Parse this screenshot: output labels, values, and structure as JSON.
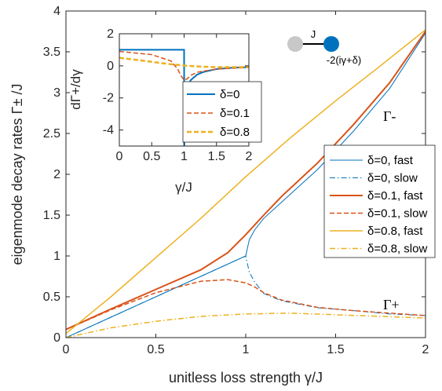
{
  "chart_data": [
    {
      "type": "line",
      "xlabel": "unitless loss strength γ/J",
      "ylabel": "eigenmode decay rates Γ± /J",
      "xlim": [
        0,
        2
      ],
      "ylim": [
        0,
        4
      ],
      "xticks": [
        "0",
        "0.5",
        "1",
        "1.5",
        "2"
      ],
      "yticks": [
        "0",
        "0.5",
        "1",
        "1.5",
        "2",
        "2.5",
        "3",
        "3.5",
        "4"
      ],
      "legend_position": "right",
      "annotations": [
        "Γ-",
        "Γ+"
      ],
      "diagram": {
        "coupling_label": "J",
        "loss_label": "-2(iγ+δ)"
      },
      "series": [
        {
          "name": "δ=0, fast",
          "color": "#0072BD",
          "dash": "solid",
          "width": 1,
          "x": [
            0,
            0.25,
            0.5,
            0.75,
            1,
            1.02,
            1.05,
            1.1,
            1.2,
            1.4,
            1.6,
            1.8,
            2
          ],
          "y": [
            0,
            0.25,
            0.5,
            0.75,
            1,
            1.2,
            1.32,
            1.46,
            1.66,
            2.06,
            2.53,
            3.05,
            3.73
          ]
        },
        {
          "name": "δ=0, slow",
          "color": "#0072BD",
          "dash": "dashdot",
          "width": 1,
          "x": [
            0,
            0.25,
            0.5,
            0.75,
            1,
            1.02,
            1.05,
            1.1,
            1.2,
            1.4,
            1.6,
            1.8,
            2
          ],
          "y": [
            0,
            0.25,
            0.5,
            0.75,
            1,
            0.8,
            0.68,
            0.54,
            0.45,
            0.365,
            0.33,
            0.29,
            0.27
          ]
        },
        {
          "name": "δ=0.1, fast",
          "color": "#D95319",
          "dash": "solid",
          "width": 2,
          "x": [
            0,
            0.25,
            0.5,
            0.75,
            0.9,
            1,
            1.05,
            1.1,
            1.2,
            1.4,
            1.6,
            1.8,
            2
          ],
          "y": [
            0.1,
            0.35,
            0.59,
            0.83,
            1.04,
            1.26,
            1.38,
            1.5,
            1.73,
            2.14,
            2.61,
            3.12,
            3.75
          ]
        },
        {
          "name": "δ=0.1, slow",
          "color": "#D95319",
          "dash": "dashed",
          "width": 1.5,
          "x": [
            0,
            0.25,
            0.5,
            0.75,
            0.9,
            1,
            1.05,
            1.1,
            1.2,
            1.4,
            1.6,
            1.8,
            2
          ],
          "y": [
            0.1,
            0.34,
            0.55,
            0.69,
            0.71,
            0.67,
            0.62,
            0.55,
            0.46,
            0.37,
            0.33,
            0.3,
            0.27
          ]
        },
        {
          "name": "δ=0.8, fast",
          "color": "#EDB120",
          "dash": "solid",
          "width": 1.5,
          "x": [
            0,
            0.25,
            0.5,
            0.75,
            1,
            1.25,
            1.5,
            1.75,
            2
          ],
          "y": [
            0.05,
            0.5,
            0.98,
            1.46,
            1.97,
            2.45,
            2.9,
            3.33,
            3.77
          ]
        },
        {
          "name": "δ=0.8, slow",
          "color": "#EDB120",
          "dash": "dashdot",
          "width": 1.5,
          "x": [
            0,
            0.25,
            0.5,
            0.75,
            1,
            1.25,
            1.5,
            1.75,
            2
          ],
          "y": [
            0,
            0.12,
            0.2,
            0.26,
            0.29,
            0.3,
            0.28,
            0.26,
            0.24
          ]
        }
      ]
    },
    {
      "type": "line",
      "xlabel": "γ/J",
      "ylabel": "dΓ+/dγ",
      "xlim": [
        0,
        2
      ],
      "ylim": [
        -5,
        2
      ],
      "xticks": [
        "0",
        "0.5",
        "1",
        "1.5",
        "2"
      ],
      "yticks": [
        "2",
        "0",
        "-2",
        "-4"
      ],
      "legend_position": "bottom-left",
      "series": [
        {
          "name": "δ=0",
          "color": "#0072BD",
          "dash": "solid",
          "width": 2,
          "x": [
            0,
            0.5,
            0.995,
            0.998,
            1.0,
            1.002,
            1.01,
            1.05,
            1.1,
            1.2,
            1.3,
            1.5,
            1.75,
            2
          ],
          "y": [
            1,
            1,
            1,
            1,
            1,
            -5,
            -3,
            -1.35,
            -0.9,
            -0.55,
            -0.38,
            -0.2,
            -0.12,
            -0.08
          ]
        },
        {
          "name": "δ=0.1",
          "color": "#D95319",
          "dash": "dashed",
          "width": 1.5,
          "x": [
            0,
            0.5,
            0.8,
            0.9,
            0.95,
            1,
            1.05,
            1.1,
            1.2,
            1.5,
            2
          ],
          "y": [
            0.9,
            0.7,
            0.3,
            -0.2,
            -0.6,
            -0.9,
            -0.8,
            -0.6,
            -0.4,
            -0.2,
            -0.1
          ]
        },
        {
          "name": "δ=0.8",
          "color": "#EDB120",
          "dash": "dashed",
          "width": 2.5,
          "x": [
            0,
            0.25,
            0.5,
            0.75,
            1,
            1.25,
            1.5,
            2
          ],
          "y": [
            0.5,
            0.38,
            0.25,
            0.12,
            0.02,
            -0.05,
            -0.08,
            -0.08
          ]
        }
      ]
    }
  ]
}
